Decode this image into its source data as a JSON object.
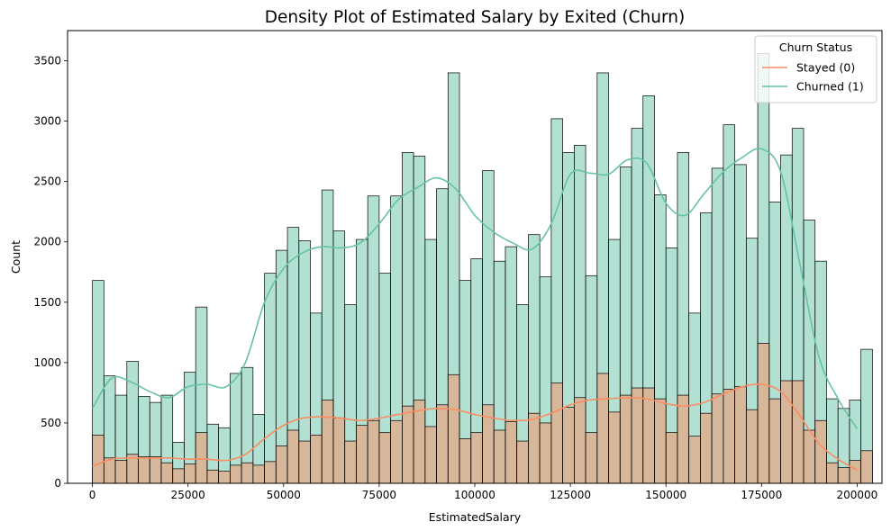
{
  "chart_data": {
    "type": "histogram",
    "title": "Density Plot of Estimated Salary by Exited (Churn)",
    "xlabel": "EstimatedSalary",
    "ylabel": "Count",
    "xlim": [
      -6500,
      206500
    ],
    "ylim": [
      0,
      3750
    ],
    "x_ticks": [
      0,
      25000,
      50000,
      75000,
      100000,
      125000,
      150000,
      175000,
      200000
    ],
    "y_ticks": [
      0,
      500,
      1000,
      1500,
      2000,
      2500,
      3000,
      3500
    ],
    "bin_width": 3000,
    "legend": {
      "title": "Churn Status",
      "placement": "top-right",
      "entries": [
        {
          "label": "Stayed (0)",
          "color": "#fc8d62"
        },
        {
          "label": "Churned (1)",
          "color": "#66c2a5"
        }
      ]
    },
    "series": [
      {
        "name": "Churned (1)",
        "color": "#66c2a5",
        "counts": [
          1680,
          890,
          730,
          1010,
          720,
          670,
          730,
          340,
          920,
          1460,
          490,
          460,
          910,
          960,
          570,
          1740,
          1930,
          2120,
          2010,
          1410,
          2430,
          2090,
          1480,
          2020,
          2380,
          1740,
          2380,
          2740,
          2710,
          2020,
          2440,
          3400,
          1680,
          1860,
          2590,
          1840,
          1960,
          1480,
          2060,
          1710,
          3020,
          2740,
          2800,
          1720,
          3400,
          2020,
          2620,
          2940,
          3210,
          2390,
          1950,
          2740,
          1410,
          2240,
          2610,
          2970,
          2640,
          2030,
          3560,
          2330,
          2720,
          2940,
          2180,
          1840,
          700,
          620,
          690,
          1110
        ],
        "kde_x": [
          0,
          5000,
          10000,
          15000,
          20000,
          25000,
          30000,
          35000,
          40000,
          45000,
          50000,
          55000,
          60000,
          65000,
          70000,
          75000,
          80000,
          85000,
          90000,
          95000,
          100000,
          105000,
          110000,
          115000,
          120000,
          125000,
          130000,
          135000,
          140000,
          145000,
          150000,
          155000,
          160000,
          165000,
          170000,
          175000,
          180000,
          185000,
          190000,
          195000,
          200000
        ],
        "kde_y": [
          620,
          870,
          840,
          760,
          710,
          800,
          820,
          800,
          1000,
          1500,
          1780,
          1910,
          1960,
          1950,
          1990,
          2150,
          2350,
          2450,
          2530,
          2440,
          2220,
          2080,
          1990,
          1940,
          2150,
          2560,
          2570,
          2560,
          2680,
          2650,
          2320,
          2220,
          2400,
          2580,
          2700,
          2770,
          2580,
          1820,
          1050,
          700,
          450
        ]
      },
      {
        "name": "Stayed (0)",
        "color": "#fc8d62",
        "counts": [
          400,
          210,
          190,
          240,
          220,
          220,
          170,
          120,
          160,
          420,
          110,
          100,
          150,
          170,
          150,
          180,
          310,
          440,
          350,
          400,
          690,
          540,
          350,
          480,
          520,
          420,
          520,
          640,
          690,
          470,
          650,
          900,
          370,
          420,
          650,
          440,
          510,
          350,
          580,
          500,
          830,
          630,
          710,
          420,
          910,
          590,
          730,
          790,
          790,
          700,
          420,
          730,
          390,
          580,
          740,
          780,
          800,
          610,
          1160,
          700,
          850,
          850,
          440,
          520,
          170,
          130,
          190,
          270
        ],
        "kde_x": [
          0,
          5000,
          10000,
          15000,
          20000,
          25000,
          30000,
          35000,
          40000,
          45000,
          50000,
          55000,
          60000,
          65000,
          70000,
          75000,
          80000,
          85000,
          90000,
          95000,
          100000,
          105000,
          110000,
          115000,
          120000,
          125000,
          130000,
          135000,
          140000,
          145000,
          150000,
          155000,
          160000,
          165000,
          170000,
          175000,
          180000,
          185000,
          190000,
          195000,
          200000
        ],
        "kde_y": [
          140,
          200,
          210,
          210,
          210,
          200,
          200,
          190,
          240,
          370,
          480,
          540,
          550,
          540,
          520,
          540,
          570,
          600,
          620,
          610,
          570,
          540,
          520,
          530,
          580,
          650,
          690,
          700,
          710,
          700,
          660,
          640,
          670,
          740,
          800,
          820,
          760,
          560,
          330,
          200,
          110
        ]
      }
    ]
  }
}
